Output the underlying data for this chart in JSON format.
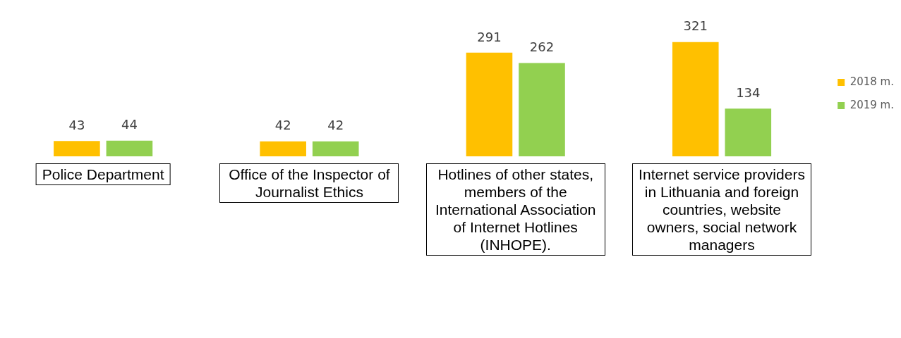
{
  "chart_data": {
    "type": "bar",
    "categories": [
      "Police Department",
      "Office of the Inspector of Journalist Ethics",
      "Hotlines of other states, members of the International Association of Internet Hotlines (INHOPE).",
      "Internet service providers in Lithuania and foreign countries, website owners, social network managers"
    ],
    "series": [
      {
        "name": "2018 m.",
        "color": "#ffc000",
        "values": [
          43,
          42,
          291,
          321
        ]
      },
      {
        "name": "2019 m.",
        "color": "#92d050",
        "values": [
          44,
          42,
          262,
          134
        ]
      }
    ],
    "data_labels": true,
    "legend": "right",
    "grid": false
  }
}
